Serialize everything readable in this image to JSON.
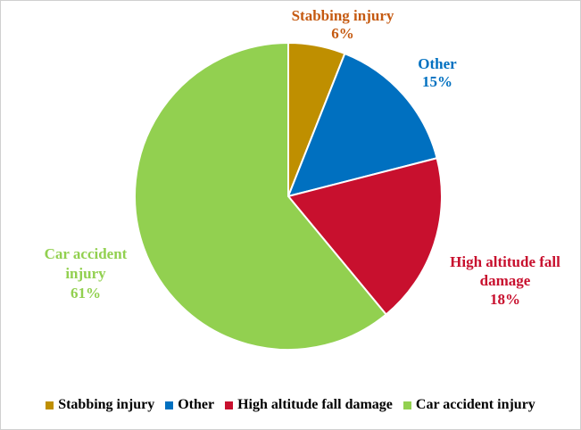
{
  "chart_data": {
    "type": "pie",
    "title": "",
    "slices": [
      {
        "label": "Stabbing injury",
        "value": 6,
        "display": "6%",
        "color": "#BF8F00",
        "label_color": "#C55A11"
      },
      {
        "label": "Other",
        "value": 15,
        "display": "15%",
        "color": "#0070C0",
        "label_color": "#0070C0"
      },
      {
        "label": "High altitude fall damage",
        "value": 18,
        "display": "18%",
        "color": "#C8102E",
        "label_color": "#C8102E"
      },
      {
        "label": "Car accident injury",
        "value": 61,
        "display": "61%",
        "color": "#92D050",
        "label_color": "#92D050"
      }
    ],
    "start_angle": "12 o'clock",
    "direction": "clockwise",
    "legend": {
      "position": "bottom",
      "entries": [
        "Stabbing injury",
        "Other",
        "High altitude fall damage",
        "Car accident injury"
      ]
    },
    "data_labels": [
      {
        "lines": [
          "Stabbing injury",
          "6%"
        ]
      },
      {
        "lines": [
          "Other",
          "15%"
        ]
      },
      {
        "lines": [
          "High altitude fall",
          "damage",
          "18%"
        ]
      },
      {
        "lines": [
          "Car accident",
          "injury",
          "61%"
        ]
      }
    ]
  }
}
